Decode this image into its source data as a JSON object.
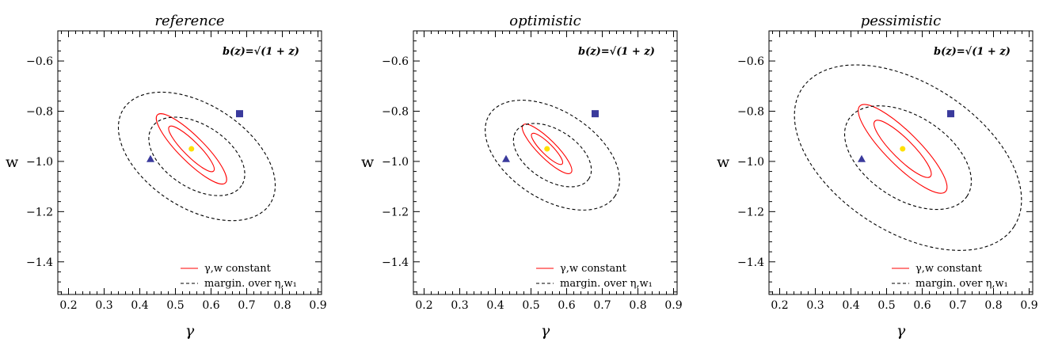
{
  "chart_data": [
    {
      "type": "scatter",
      "title": "reference",
      "xlabel": "γ",
      "ylabel": "w",
      "xlim": [
        0.17,
        0.91
      ],
      "ylim": [
        -1.53,
        -0.48
      ],
      "xticks": [
        "0.2",
        "0.3",
        "0.4",
        "0.5",
        "0.6",
        "0.7",
        "0.8",
        "0.9"
      ],
      "yticks": [
        "−0.6",
        "−0.8",
        "−1.0",
        "−1.2",
        "−1.4"
      ],
      "formula": "b(z)=√(1 + z)",
      "legend": [
        "γ,w constant",
        "margin. over η,w₁"
      ],
      "fiducial": {
        "x": 0.545,
        "y": -0.95,
        "color": "#ffe000"
      },
      "markers": [
        {
          "shape": "square",
          "x": 0.68,
          "y": -0.81,
          "color": "#3a3a9c"
        },
        {
          "shape": "triangle",
          "x": 0.43,
          "y": -0.99,
          "color": "#3a3a9c"
        }
      ],
      "contours": [
        {
          "style": "solid",
          "color": "#ff0000",
          "cx": 0.545,
          "cy": -0.95,
          "a": 0.088,
          "b": 0.03,
          "angle_deg": -45
        },
        {
          "style": "solid",
          "color": "#ff0000",
          "cx": 0.545,
          "cy": -0.95,
          "a": 0.135,
          "b": 0.05,
          "angle_deg": -45
        },
        {
          "style": "dashed",
          "color": "#000000",
          "cx": 0.56,
          "cy": -0.98,
          "a": 0.15,
          "b": 0.125,
          "angle_deg": -33
        },
        {
          "style": "dashed",
          "color": "#000000",
          "cx": 0.56,
          "cy": -0.98,
          "a": 0.245,
          "b": 0.205,
          "angle_deg": -33
        }
      ]
    },
    {
      "type": "scatter",
      "title": "optimistic",
      "xlabel": "γ",
      "ylabel": "w",
      "xlim": [
        0.17,
        0.91
      ],
      "ylim": [
        -1.53,
        -0.48
      ],
      "xticks": [
        "0.2",
        "0.3",
        "0.4",
        "0.5",
        "0.6",
        "0.7",
        "0.8",
        "0.9"
      ],
      "yticks": [
        "−0.6",
        "−0.8",
        "−1.0",
        "−1.2",
        "−1.4"
      ],
      "formula": "b(z)=√(1 + z)",
      "legend": [
        "γ,w constant",
        "margin. over η,w₁"
      ],
      "fiducial": {
        "x": 0.545,
        "y": -0.95,
        "color": "#ffe000"
      },
      "markers": [
        {
          "shape": "square",
          "x": 0.68,
          "y": -0.81,
          "color": "#3a3a9c"
        },
        {
          "shape": "triangle",
          "x": 0.43,
          "y": -0.99,
          "color": "#3a3a9c"
        }
      ],
      "contours": [
        {
          "style": "solid",
          "color": "#ff0000",
          "cx": 0.545,
          "cy": -0.95,
          "a": 0.06,
          "b": 0.022,
          "angle_deg": -45
        },
        {
          "style": "solid",
          "color": "#ff0000",
          "cx": 0.545,
          "cy": -0.95,
          "a": 0.095,
          "b": 0.036,
          "angle_deg": -45
        },
        {
          "style": "dashed",
          "color": "#000000",
          "cx": 0.56,
          "cy": -0.975,
          "a": 0.122,
          "b": 0.1,
          "angle_deg": -33
        },
        {
          "style": "dashed",
          "color": "#000000",
          "cx": 0.56,
          "cy": -0.975,
          "a": 0.21,
          "b": 0.175,
          "angle_deg": -33
        }
      ]
    },
    {
      "type": "scatter",
      "title": "pessimistic",
      "xlabel": "γ",
      "ylabel": "w",
      "xlim": [
        0.17,
        0.91
      ],
      "ylim": [
        -1.53,
        -0.48
      ],
      "xticks": [
        "0.2",
        "0.3",
        "0.4",
        "0.5",
        "0.6",
        "0.7",
        "0.8",
        "0.9"
      ],
      "yticks": [
        "−0.6",
        "−0.8",
        "−1.0",
        "−1.2",
        "−1.4"
      ],
      "formula": "b(z)=√(1 + z)",
      "legend": [
        "γ,w constant",
        "margin. over η,w₁"
      ],
      "fiducial": {
        "x": 0.545,
        "y": -0.95,
        "color": "#ffe000"
      },
      "markers": [
        {
          "shape": "square",
          "x": 0.68,
          "y": -0.81,
          "color": "#3a3a9c"
        },
        {
          "shape": "triangle",
          "x": 0.43,
          "y": -0.99,
          "color": "#3a3a9c"
        }
      ],
      "contours": [
        {
          "style": "solid",
          "color": "#ff0000",
          "cx": 0.545,
          "cy": -0.95,
          "a": 0.11,
          "b": 0.04,
          "angle_deg": -45
        },
        {
          "style": "solid",
          "color": "#ff0000",
          "cx": 0.545,
          "cy": -0.95,
          "a": 0.17,
          "b": 0.066,
          "angle_deg": -45
        },
        {
          "style": "dashed",
          "color": "#000000",
          "cx": 0.56,
          "cy": -0.985,
          "a": 0.198,
          "b": 0.165,
          "angle_deg": -33
        },
        {
          "style": "dashed",
          "color": "#000000",
          "cx": 0.56,
          "cy": -0.985,
          "a": 0.355,
          "b": 0.295,
          "angle_deg": -33
        }
      ]
    }
  ]
}
